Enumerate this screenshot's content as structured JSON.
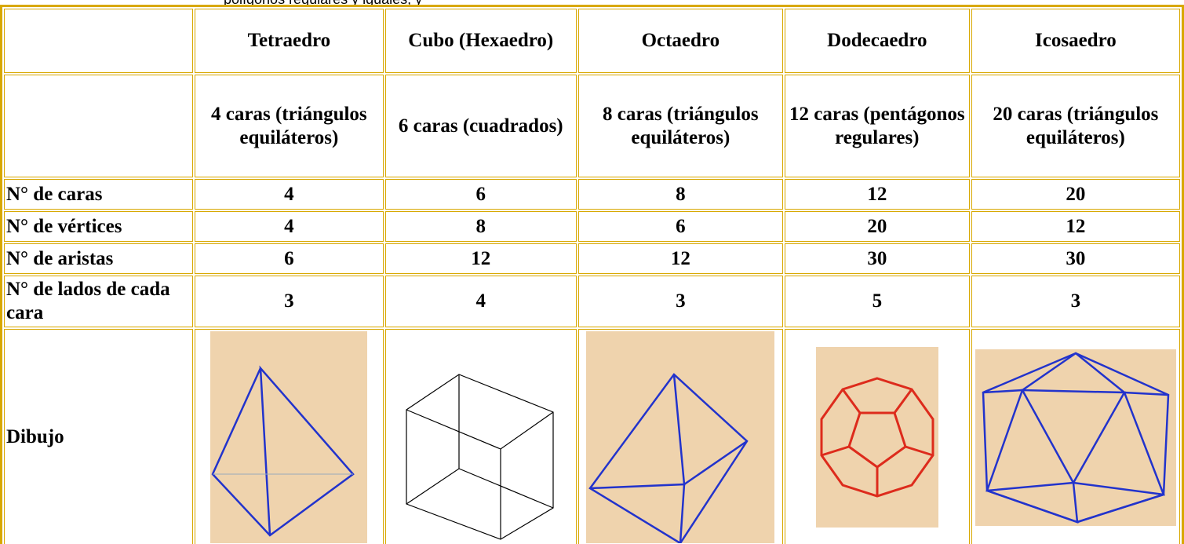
{
  "header": {
    "top_text": "polígonos regulares y iguales, y"
  },
  "table": {
    "columns": [
      "Tetraedro",
      "Cubo (Hexaedro)",
      "Octaedro",
      "Dodecaedro",
      "Icosaedro"
    ],
    "descriptions": [
      "4 caras (triángulos equiláteros)",
      "6 caras (cuadrados)",
      "8 caras (triángulos equiláteros)",
      "12 caras (pentágonos regulares)",
      "20 caras (triángulos equiláteros)"
    ],
    "rows": [
      {
        "label": "N° de caras",
        "values": [
          4,
          6,
          8,
          12,
          20
        ]
      },
      {
        "label": "N° de vértices",
        "values": [
          4,
          8,
          6,
          20,
          12
        ]
      },
      {
        "label": "N° de aristas",
        "values": [
          6,
          12,
          12,
          30,
          30
        ]
      },
      {
        "label": "N° de lados de cada cara",
        "values": [
          3,
          4,
          3,
          5,
          3
        ]
      }
    ],
    "drawing_label": "Dibujo"
  }
}
